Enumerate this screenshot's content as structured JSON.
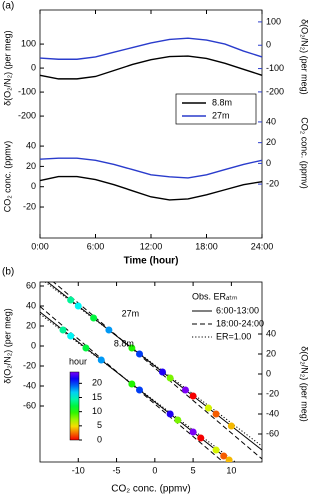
{
  "chart_data": [
    {
      "type": "line",
      "panel_label": "(a)",
      "xlabel": "Time (hour)",
      "ylabel": "δ(O₂/N₂) (per meg)",
      "ylabel_lower": "CO₂ conc. (ppmv)",
      "y2label": "δ(O₂/N₂) (per meg)",
      "y2label_lower": "CO₂ conc. (ppmv)",
      "x": [
        0,
        2,
        4,
        6,
        8,
        10,
        12,
        14,
        16,
        18,
        20,
        22,
        24
      ],
      "xlim": [
        0,
        24
      ],
      "xticks": [
        {
          "value": 0,
          "label": "0:00"
        },
        {
          "value": 6,
          "label": "6:00"
        },
        {
          "value": 12,
          "label": "12:00"
        },
        {
          "value": 18,
          "label": "18:00"
        },
        {
          "value": 24,
          "label": "24:00"
        }
      ],
      "ylim": [
        -708,
        242
      ],
      "yticks": [
        -200,
        -100,
        0,
        100
      ],
      "ylim_lower": [
        -50.5,
        174
      ],
      "yticks_lower": [
        -20,
        0,
        20,
        40
      ],
      "y2lim": [
        -826,
        151
      ],
      "y2ticks": [
        -200,
        -100,
        0,
        100
      ],
      "y2lim_lower": [
        -72,
        148
      ],
      "y2ticks_lower": [
        -20,
        0,
        20,
        40
      ],
      "legend": "right",
      "series": [
        {
          "name": "8.8m",
          "color": "#000000",
          "values": [
            -30,
            -45,
            -45,
            -35,
            -10,
            15,
            35,
            48,
            50,
            40,
            20,
            -5,
            -30
          ],
          "values_lower": [
            6,
            10,
            10,
            7,
            2,
            -4,
            -10,
            -13,
            -12,
            -8,
            -3,
            2,
            5
          ]
        },
        {
          "name": "27m",
          "color": "#2a3ccc",
          "axis": "y2",
          "values": [
            -55,
            -60,
            -60,
            -50,
            -30,
            -10,
            10,
            25,
            30,
            22,
            5,
            -25,
            -50
          ],
          "values_lower": [
            4,
            5,
            5,
            3,
            -1,
            -6,
            -11,
            -13,
            -14,
            -11,
            -6,
            -1,
            3
          ]
        }
      ]
    },
    {
      "type": "scatter",
      "panel_label": "(b)",
      "xlabel": "CO₂ conc. (ppmv)",
      "ylabel": "δ(O₂/N₂) (per meg)",
      "y2label": "δ(O₂/N₂) (per meg)",
      "xlim": [
        -15,
        14
      ],
      "xticks": [
        -10,
        -5,
        0,
        5,
        10
      ],
      "ylim": [
        -116,
        64
      ],
      "yticks": [
        -60,
        -40,
        -20,
        0,
        20,
        40,
        60
      ],
      "y2lim": [
        -88,
        92
      ],
      "y2ticks": [
        -60,
        -40,
        -20,
        0,
        20,
        40
      ],
      "legend_title": "Obs. ERₐₜₘ",
      "series": [
        {
          "name": "27m",
          "hours": [
            0,
            2,
            4,
            6,
            8,
            10,
            12,
            14,
            16,
            18,
            20,
            22,
            24
          ],
          "x": [
            5,
            8,
            10,
            7,
            2,
            -3,
            -8,
            -11,
            -10,
            -6,
            -2,
            1,
            4
          ],
          "values": [
            -50,
            -68,
            -80,
            -62,
            -32,
            -2,
            28,
            46,
            40,
            16,
            -8,
            -26,
            -44
          ]
        },
        {
          "name": "8.8m",
          "axis": "y2",
          "hours": [
            0,
            2,
            4,
            6,
            8,
            10,
            12,
            14,
            16,
            18,
            20,
            22,
            24
          ],
          "x": [
            6,
            9,
            9.7,
            8,
            3,
            -3,
            -9,
            -12,
            -11,
            -7,
            -2,
            2,
            5
          ],
          "values": [
            -64,
            -82,
            -86,
            -76,
            -46,
            -10,
            26,
            44,
            38,
            14,
            -16,
            -40,
            -58
          ]
        }
      ],
      "fits": [
        {
          "name": "6:00-13:00",
          "style": "solid",
          "x": [
            -15,
            14
          ],
          "values": [
            70,
            -104
          ],
          "values_y2": [
            62,
            -112
          ]
        },
        {
          "name": "18:00-24:00",
          "style": "dashed",
          "x": [
            -15,
            14
          ],
          "values": [
            75.5,
            -113
          ],
          "values_y2": [
            67.5,
            -121
          ]
        },
        {
          "name": "ER=1.00",
          "style": "dotted",
          "x": [
            -15,
            14
          ],
          "values": [
            68,
            -100.2
          ],
          "values_y2": [
            60,
            -108.2
          ]
        }
      ],
      "colorbar": {
        "label": "hour",
        "lim": [
          0,
          24
        ],
        "ticks": [
          0,
          5,
          10,
          15,
          20
        ]
      }
    }
  ]
}
